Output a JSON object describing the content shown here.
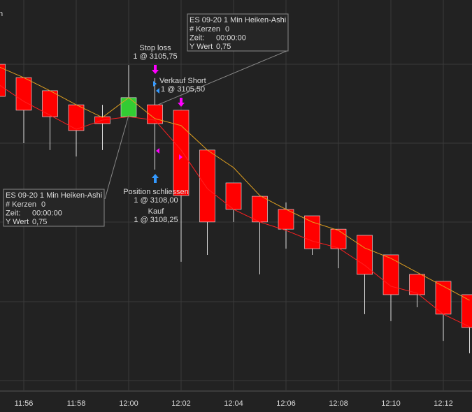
{
  "chart_data": {
    "type": "candlestick",
    "corner_text": "n",
    "categories": [
      null,
      "11:56",
      null,
      "11:58",
      null,
      "12:00",
      null,
      "12:02",
      null,
      "12:04",
      null,
      "12:06",
      null,
      "12:08",
      null,
      "12:10",
      null,
      "12:12",
      null
    ],
    "open": [
      3104.48,
      3105.02,
      3105.55,
      3106.12,
      3106.6,
      3106.6,
      3106.12,
      3106.34,
      3107.95,
      3109.28,
      3109.82,
      3110.35,
      3110.61,
      3111.15,
      3111.4,
      3112.19,
      3112.98,
      3113.26,
      3113.8
    ],
    "close": [
      3105.78,
      3106.34,
      3106.6,
      3107.16,
      3106.88,
      3105.83,
      3106.88,
      3109.79,
      3110.86,
      3110.35,
      3110.86,
      3111.15,
      3111.94,
      3111.94,
      3112.98,
      3113.8,
      3113.8,
      3114.59,
      3115.13
    ],
    "low": [
      3104.48,
      3105.02,
      3105.55,
      3106.12,
      3106.12,
      3104.51,
      3105.04,
      3106.34,
      3107.95,
      3109.28,
      3109.82,
      3110.07,
      3110.61,
      3111.15,
      3111.4,
      3112.19,
      3112.98,
      3113.26,
      3113.8
    ],
    "high": [
      3105.78,
      3107.67,
      3107.95,
      3108.21,
      3107.95,
      3106.6,
      3108.74,
      3112.47,
      3112.19,
      3110.86,
      3112.98,
      3111.94,
      3112.19,
      3112.73,
      3114.59,
      3114.87,
      3114.31,
      3115.67,
      3116.17
    ],
    "rise_color": "#ff0000",
    "fall_color": "#33cc33",
    "inverted": true,
    "ylim": [
      3101.88,
      3117.7
    ],
    "lines": [
      {
        "color": "#e0a020",
        "values": [
          3104.56,
          3105.02,
          3105.55,
          3106.12,
          3106.63,
          3105.83,
          3106.68,
          3106.96,
          3107.95,
          3108.66,
          3109.79,
          3110.35,
          3110.86,
          3111.2,
          3111.91,
          3112.33,
          3112.9,
          3113.46,
          3114.03
        ]
      },
      {
        "color": "#ff2020",
        "values": [
          3105.27,
          3105.98,
          3106.54,
          3107.11,
          3106.74,
          3106.6,
          3106.74,
          3107.95,
          3109.51,
          3110.35,
          3110.86,
          3111.2,
          3111.63,
          3111.91,
          3112.61,
          3113.46,
          3113.74,
          3114.59,
          3115.1
        ]
      }
    ],
    "tooltips": [
      {
        "title": "ES 09-20 1 Min Heiken-Ashi",
        "rows": [
          [
            "# Kerzen",
            "0"
          ],
          [
            "Zeit:",
            "00:00:00"
          ],
          [
            "Y Wert",
            "0,75"
          ]
        ]
      },
      {
        "title": "ES 09-20 1 Min Heiken-Ashi",
        "rows": [
          [
            "# Kerzen",
            "0"
          ],
          [
            "Zeit:",
            "00:00:00"
          ],
          [
            "Y Wert",
            "0,75"
          ]
        ]
      }
    ],
    "orders": [
      {
        "label": "Stop loss",
        "detail": "1 @ 3105,75"
      },
      {
        "label": "Verkauf Short",
        "detail": "1 @ 3105,50"
      },
      {
        "label": "Position schliessen",
        "detail": "1 @ 3108,00"
      },
      {
        "label": "Kauf",
        "detail": "1 @ 3108,25"
      }
    ]
  }
}
